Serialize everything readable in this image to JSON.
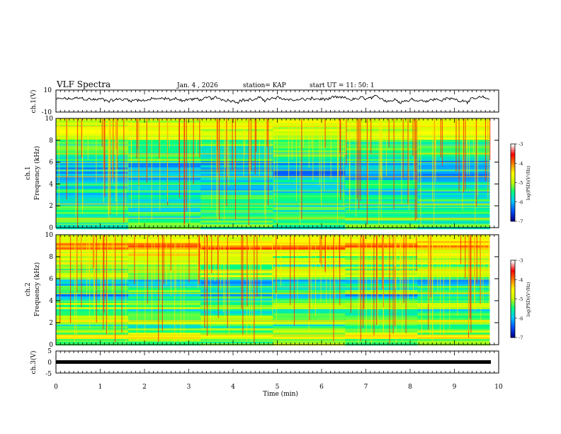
{
  "header": {
    "title": "VLF Spectra",
    "date": "Jan. 4 , 2026",
    "station": "station= KAP",
    "start": "start  UT =  11: 50: 1"
  },
  "colors": {
    "axis": "#000000",
    "waveform": "#000000",
    "colormap": [
      "#000090",
      "#0050ff",
      "#00c8ff",
      "#00ff80",
      "#c8ff00",
      "#ffff00",
      "#ff8000",
      "#ff0000",
      "#ffffff"
    ]
  },
  "chart_data": [
    {
      "type": "line",
      "name": "ch1-waveform",
      "ylabel": "ch.1(V)",
      "ylim": [
        -10,
        10
      ],
      "yticks": [
        "10",
        "-10"
      ],
      "x_range": [
        0,
        9.8
      ],
      "description_values": "noise signal approx 0 to +4 V"
    },
    {
      "type": "heatmap",
      "name": "ch1-spectrogram",
      "ylabel": "ch.1\nFrequency (kHz)",
      "ylabel_lines": [
        "ch.1",
        "Frequency (kHz)"
      ],
      "ylim": [
        0,
        10
      ],
      "yticks": [
        "0",
        "2",
        "4",
        "6",
        "8",
        "10"
      ],
      "x_range": [
        0,
        9.8
      ],
      "colorbar": {
        "label": "log(PSD)(V²/Hz)",
        "range": [
          -7,
          -3
        ],
        "ticks": [
          "-3",
          "-4",
          "-5",
          "-6",
          "-7"
        ]
      }
    },
    {
      "type": "heatmap",
      "name": "ch2-spectrogram",
      "ylabel": "ch.2\nFrequency (kHz)",
      "ylabel_lines": [
        "ch.2",
        "Frequency (kHz)"
      ],
      "ylim": [
        0,
        10
      ],
      "yticks": [
        "0",
        "2",
        "4",
        "6",
        "8",
        "10"
      ],
      "x_range": [
        0,
        9.8
      ],
      "colorbar": {
        "label": "log(PSD)(V²/Hz)",
        "range": [
          -7,
          -3
        ],
        "ticks": [
          "-3",
          "-4",
          "-5",
          "-6",
          "-7"
        ]
      }
    },
    {
      "type": "line",
      "name": "ch3-waveform",
      "ylabel": "ch.3(V)",
      "ylim": [
        -5,
        5
      ],
      "yticks": [
        "5",
        "0",
        "-5"
      ],
      "x_range": [
        0,
        9.8
      ],
      "constant_value": 0
    }
  ],
  "xaxis": {
    "label": "Time (min)",
    "range": [
      0,
      10
    ],
    "ticks": [
      "0",
      "1",
      "2",
      "3",
      "4",
      "5",
      "6",
      "7",
      "8",
      "9",
      "10"
    ]
  }
}
